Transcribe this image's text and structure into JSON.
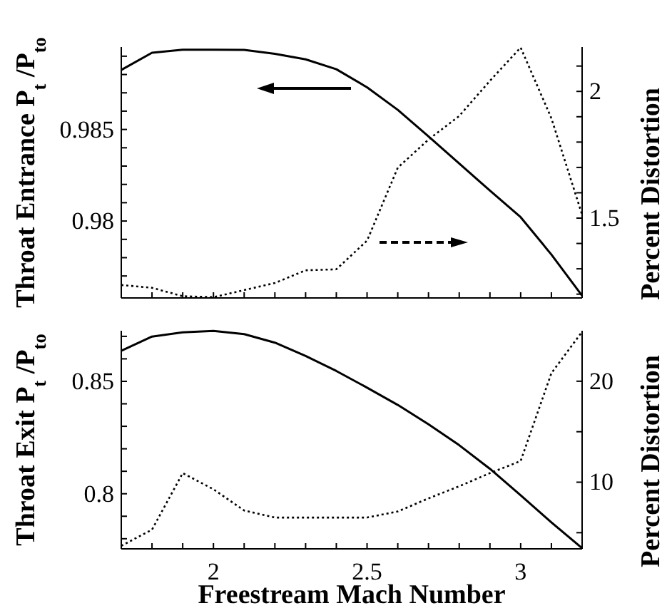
{
  "chart_data": [
    {
      "type": "line",
      "ylabel": "Throat Entrance P$_{t}$ /P$_{to}$",
      "y2label": "Percent Distortion",
      "tick_labels": "y",
      "grid": false,
      "x": [
        1.7,
        1.8,
        1.9,
        2.0,
        2.1,
        2.2,
        2.3,
        2.4,
        2.5,
        2.6,
        2.7,
        2.8,
        2.9,
        3.0,
        3.1,
        3.2
      ],
      "xlim": [
        1.7,
        3.2
      ],
      "xticks": [
        {
          "value": 1.8,
          "label": null
        },
        {
          "value": 1.9,
          "label": null
        },
        2,
        {
          "value": 2.1,
          "label": null
        },
        {
          "value": 2.2,
          "label": null
        },
        {
          "value": 2.3,
          "label": null
        },
        {
          "value": 2.4,
          "label": null
        },
        2.5,
        {
          "value": 2.6,
          "label": null
        },
        {
          "value": 2.7,
          "label": null
        },
        {
          "value": 2.8,
          "label": null
        },
        {
          "value": 2.9,
          "label": null
        },
        3,
        {
          "value": 3.1,
          "label": null
        }
      ],
      "ylim": [
        0.9758,
        0.9895
      ],
      "yticks": [
        {
          "value": 0.977,
          "label": null
        },
        {
          "value": 0.978,
          "label": null
        },
        {
          "value": 0.979,
          "label": null
        },
        0.98,
        {
          "value": 0.981,
          "label": null
        },
        {
          "value": 0.982,
          "label": null
        },
        {
          "value": 0.983,
          "label": null
        },
        {
          "value": 0.984,
          "label": null
        },
        0.985,
        {
          "value": 0.986,
          "label": null
        },
        {
          "value": 0.987,
          "label": null
        },
        {
          "value": 0.988,
          "label": null
        },
        {
          "value": 0.989,
          "label": null
        }
      ],
      "y2lim": [
        1.185,
        2.175
      ],
      "y2ticks": [
        {
          "value": 1.2,
          "label": null
        },
        {
          "value": 1.3,
          "label": null
        },
        {
          "value": 1.4,
          "label": null
        },
        1.5,
        {
          "value": 1.6,
          "label": null
        },
        {
          "value": 1.7,
          "label": null
        },
        {
          "value": 1.8,
          "label": null
        },
        {
          "value": 1.9,
          "label": null
        },
        2,
        {
          "value": 2.1,
          "label": null
        }
      ],
      "series": [
        {
          "color": "#000000",
          "line_style": "solid",
          "values": [
            0.98825,
            0.98919,
            0.98935,
            0.98935,
            0.98934,
            0.98913,
            0.98883,
            0.98829,
            0.9873,
            0.98607,
            0.98462,
            0.98314,
            0.98166,
            0.98021,
            0.97817,
            0.97592
          ]
        },
        {
          "color": "#000000",
          "line_style": "dotted",
          "axis": "y2",
          "values": [
            1.236,
            1.225,
            1.192,
            1.188,
            1.216,
            1.244,
            1.294,
            1.298,
            1.411,
            1.699,
            1.81,
            1.903,
            2.042,
            2.173,
            1.894,
            1.513
          ]
        }
      ]
    },
    {
      "type": "line",
      "ylabel": "Throat Exit P$_{t}$ /P$_{to}$",
      "y2label": "Percent Distortion",
      "xlabel": "Freestream Mach Number",
      "grid": false,
      "x": [
        1.7,
        1.8,
        1.9,
        2.0,
        2.1,
        2.2,
        2.3,
        2.4,
        2.5,
        2.6,
        2.7,
        2.8,
        2.9,
        3.0,
        3.1,
        3.2
      ],
      "xlim": [
        1.7,
        3.2
      ],
      "xticks": [
        {
          "value": 1.8,
          "label": null
        },
        {
          "value": 1.9,
          "label": null
        },
        2,
        {
          "value": 2.1,
          "label": null
        },
        {
          "value": 2.2,
          "label": null
        },
        {
          "value": 2.3,
          "label": null
        },
        {
          "value": 2.4,
          "label": null
        },
        2.5,
        {
          "value": 2.6,
          "label": null
        },
        {
          "value": 2.7,
          "label": null
        },
        {
          "value": 2.8,
          "label": null
        },
        {
          "value": 2.9,
          "label": null
        },
        3,
        {
          "value": 3.1,
          "label": null
        }
      ],
      "ylim": [
        0.7755,
        0.8725
      ],
      "yticks": [
        {
          "value": 0.78,
          "label": null
        },
        {
          "value": 0.79,
          "label": null
        },
        0.8,
        {
          "value": 0.81,
          "label": null
        },
        {
          "value": 0.82,
          "label": null
        },
        {
          "value": 0.83,
          "label": null
        },
        {
          "value": 0.84,
          "label": null
        },
        0.85,
        {
          "value": 0.86,
          "label": null
        },
        {
          "value": 0.87,
          "label": null
        }
      ],
      "y2lim": [
        3.4,
        25
      ],
      "y2ticks": [
        {
          "value": 5,
          "label": null
        },
        10,
        {
          "value": 15,
          "label": null
        },
        20
      ],
      "series": [
        {
          "color": "#000000",
          "line_style": "solid",
          "values": [
            0.8636,
            0.8699,
            0.8718,
            0.8724,
            0.871,
            0.8672,
            0.8613,
            0.8546,
            0.8472,
            0.8395,
            0.8309,
            0.8216,
            0.8111,
            0.7993,
            0.7873,
            0.7758
          ]
        },
        {
          "color": "#000000",
          "line_style": "dotted",
          "axis": "y2",
          "values": [
            3.7,
            5.3,
            10.9,
            9.3,
            7.2,
            6.5,
            6.5,
            6.5,
            6.5,
            7.1,
            8.4,
            9.6,
            10.9,
            12.1,
            20.8,
            24.9
          ]
        }
      ]
    }
  ]
}
